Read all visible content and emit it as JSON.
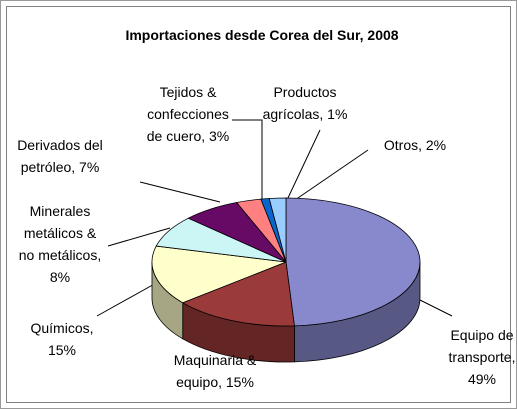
{
  "chart_data": {
    "type": "pie3d",
    "title": "Importaciones desde Corea del Sur, 2008",
    "labels": [
      "Equipo de\ntransporte,\n49%",
      "Maquinaria &\nequipo, 15%",
      "Químicos,\n15%",
      "Minerales\nmetálicos &\nno metálicos,\n8%",
      "Derivados del\npetróleo, 7%",
      "Tejidos &\nconfecciones\nde cuero, 3%",
      "Productos\nagrícolas, 1%",
      "Otros, 2%"
    ],
    "values": [
      49,
      15,
      15,
      8,
      7,
      3,
      1,
      2
    ],
    "colors": [
      "#8888cc",
      "#9a3a3a",
      "#ffffcc",
      "#ccf5f5",
      "#660a66",
      "#ff8080",
      "#0a66cc",
      "#99ccff"
    ]
  }
}
